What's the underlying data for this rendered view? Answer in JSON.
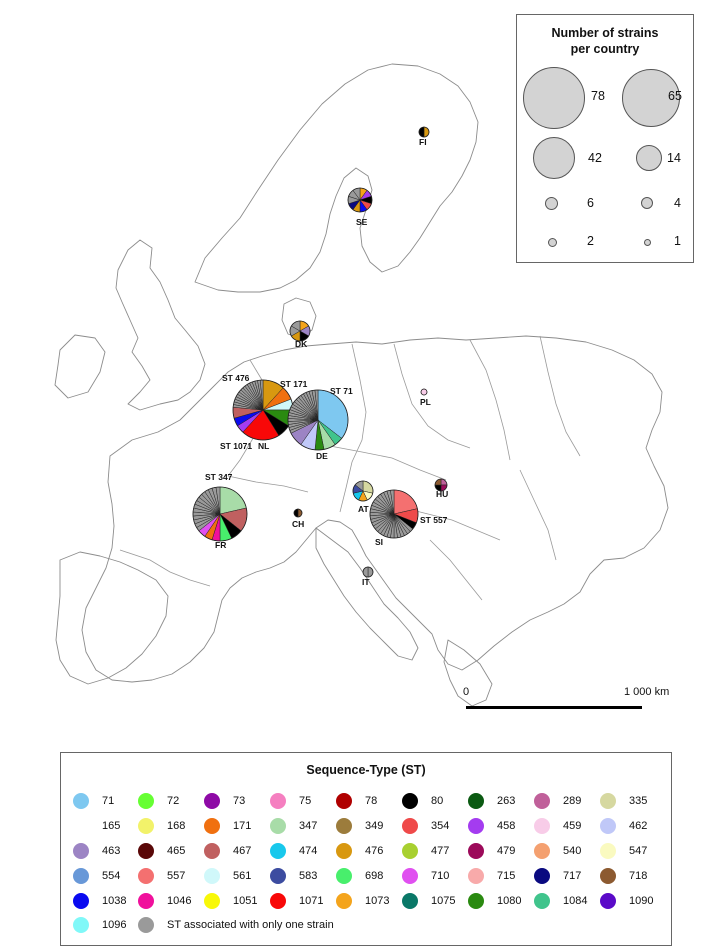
{
  "size_legend": {
    "title_line1": "Number of strains",
    "title_line2": "per country",
    "entries": [
      {
        "count": "78"
      },
      {
        "count": "65"
      },
      {
        "count": "42"
      },
      {
        "count": "14"
      },
      {
        "count": "6"
      },
      {
        "count": "4"
      },
      {
        "count": "2"
      },
      {
        "count": "1"
      }
    ]
  },
  "scale": {
    "start": "0",
    "end": "1 000 km"
  },
  "countries": [
    {
      "code": "FI"
    },
    {
      "code": "SE"
    },
    {
      "code": "DK"
    },
    {
      "code": "NL"
    },
    {
      "code": "DE"
    },
    {
      "code": "PL"
    },
    {
      "code": "FR"
    },
    {
      "code": "CH"
    },
    {
      "code": "AT"
    },
    {
      "code": "HU"
    },
    {
      "code": "SI"
    },
    {
      "code": "IT"
    }
  ],
  "st_annotations": {
    "nl_a": "ST 476",
    "nl_b": "ST 171",
    "nl_c": "ST 1071",
    "de": "ST 71",
    "fr": "ST 347",
    "si": "ST 557"
  },
  "st_legend": {
    "title": "Sequence-Type (ST)",
    "items": [
      {
        "label": "71",
        "color": "#7ec8f0"
      },
      {
        "label": "72",
        "color": "#66ff33"
      },
      {
        "label": "73",
        "color": "#8e0aa6"
      },
      {
        "label": "75",
        "color": "#f57fc0"
      },
      {
        "label": "78",
        "color": "#b00000"
      },
      {
        "label": "80",
        "color": "#000000"
      },
      {
        "label": "263",
        "color": "#0b5a12"
      },
      {
        "label": "289",
        "color": "#c0609a"
      },
      {
        "label": "335",
        "color": "#d6d8a0"
      },
      {
        "label": "165",
        "color": "#ffffff"
      },
      {
        "label": "168",
        "color": "#f2f26a"
      },
      {
        "label": "171",
        "color": "#f07010"
      },
      {
        "label": "347",
        "color": "#a8dca8"
      },
      {
        "label": "349",
        "color": "#9c7c3c"
      },
      {
        "label": "354",
        "color": "#ef4a4a"
      },
      {
        "label": "458",
        "color": "#a43cf0"
      },
      {
        "label": "459",
        "color": "#f8cce8"
      },
      {
        "label": "462",
        "color": "#c0c8f8"
      },
      {
        "label": "463",
        "color": "#9c84c4"
      },
      {
        "label": "465",
        "color": "#5a0808"
      },
      {
        "label": "467",
        "color": "#c06060"
      },
      {
        "label": "474",
        "color": "#18c8ec"
      },
      {
        "label": "476",
        "color": "#d89810"
      },
      {
        "label": "477",
        "color": "#a8d030"
      },
      {
        "label": "479",
        "color": "#9c0a5a"
      },
      {
        "label": "540",
        "color": "#f4a070"
      },
      {
        "label": "547",
        "color": "#fafac0"
      },
      {
        "label": "554",
        "color": "#6898d8"
      },
      {
        "label": "557",
        "color": "#f47070"
      },
      {
        "label": "561",
        "color": "#d0f8fa"
      },
      {
        "label": "583",
        "color": "#3c4ca0"
      },
      {
        "label": "698",
        "color": "#48ef6c"
      },
      {
        "label": "710",
        "color": "#e050f0"
      },
      {
        "label": "715",
        "color": "#f8aaaa"
      },
      {
        "label": "717",
        "color": "#0a0a80"
      },
      {
        "label": "718",
        "color": "#8c5a30"
      },
      {
        "label": "1038",
        "color": "#0a0af0"
      },
      {
        "label": "1046",
        "color": "#f0109c"
      },
      {
        "label": "1051",
        "color": "#f8f808"
      },
      {
        "label": "1071",
        "color": "#f80808"
      },
      {
        "label": "1073",
        "color": "#f4a41c"
      },
      {
        "label": "1075",
        "color": "#0a7868"
      },
      {
        "label": "1080",
        "color": "#2a8a10"
      },
      {
        "label": "1084",
        "color": "#40c48c"
      },
      {
        "label": "1090",
        "color": "#5a0ac8"
      },
      {
        "label": "1096",
        "color": "#80f8f8"
      },
      {
        "label": "ST associated with only one strain",
        "color": "#9a9a9a"
      }
    ]
  }
}
